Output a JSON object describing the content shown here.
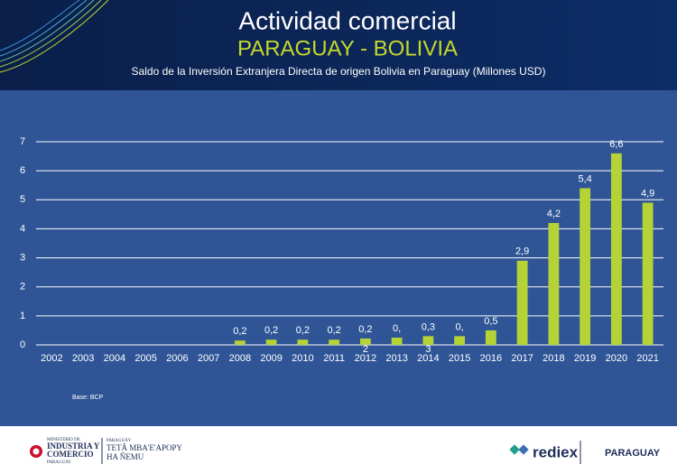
{
  "chart_data": {
    "type": "bar",
    "title": "Actividad comercial",
    "heading": "PARAGUAY - BOLIVIA",
    "subtitle": "Saldo de la Inversión Extranjera Directa de origen Bolivia en Paraguay (Millones USD)",
    "source": "Base: BCP",
    "categories": [
      "2002",
      "2003",
      "2004",
      "2005",
      "2006",
      "2007",
      "2008",
      "2009",
      "2010",
      "2011",
      "2012",
      "2013",
      "2014",
      "2015",
      "2016",
      "2017",
      "2018",
      "2019",
      "2020",
      "2021"
    ],
    "values": [
      null,
      null,
      null,
      null,
      null,
      null,
      0.15,
      0.18,
      0.18,
      0.18,
      0.22,
      0.25,
      0.3,
      0.3,
      0.5,
      2.9,
      4.2,
      5.4,
      6.6,
      4.9
    ],
    "value_labels": [
      null,
      null,
      null,
      null,
      null,
      null,
      "0,2",
      "0,2",
      "0,2",
      "0,2",
      "0,2",
      "0,",
      "0,3",
      "0,",
      "0,5",
      "2,9",
      "4,2",
      "5,4",
      "6,6",
      "4,9"
    ],
    "stray_labels": [
      "2",
      "3"
    ],
    "color": "#b5d334",
    "ylim": [
      0,
      7
    ],
    "yticks": [
      0,
      1,
      2,
      3,
      4,
      5,
      6,
      7
    ],
    "grid": true
  },
  "footer": {
    "ministry": [
      "MINISTERIO DE",
      "INDUSTRIA Y",
      "COMERCIO",
      "PARAGUAY"
    ],
    "ministry_gn": [
      "PARAGUÁY",
      "TETÃ MBA'E'APOPY",
      "HA ÑEMU"
    ],
    "rediex": "rediex",
    "paraguay": "PARAGUAY"
  }
}
